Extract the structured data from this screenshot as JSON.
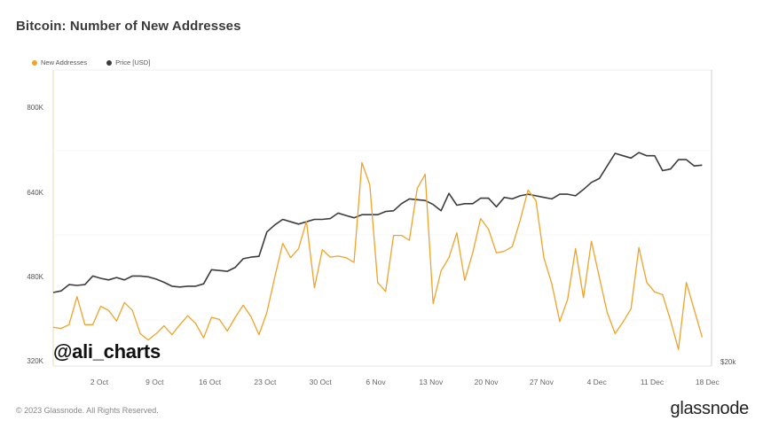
{
  "header": {
    "title": "Bitcoin: Number of New Addresses"
  },
  "legend": [
    {
      "label": "New Addresses",
      "color": "#f0a22a"
    },
    {
      "label": "Price [USD]",
      "color": "#3c3c3c"
    }
  ],
  "axes": {
    "left_ticks": [
      "800K",
      "640K",
      "480K",
      "320K"
    ],
    "right_ticks": [
      "$20k"
    ],
    "x_ticks": [
      "2 Oct",
      "9 Oct",
      "16 Oct",
      "23 Oct",
      "30 Oct",
      "6 Nov",
      "13 Nov",
      "20 Nov",
      "27 Nov",
      "4 Dec",
      "11 Dec",
      "18 Dec"
    ]
  },
  "watermark": "@ali_charts",
  "footer": {
    "copyright": "© 2023 Glassnode. All Rights Reserved.",
    "brand": "glassnode"
  },
  "chart_data": {
    "type": "line",
    "title": "Bitcoin: Number of New Addresses",
    "xlabel": "",
    "ylabel": "New Addresses",
    "ylim": [
      320000,
      870000
    ],
    "y_ticks": [
      320000,
      480000,
      640000,
      800000
    ],
    "x_range": [
      "26 Sep 2023",
      "17 Dec 2023"
    ],
    "x_tick_labels": [
      "2 Oct",
      "9 Oct",
      "16 Oct",
      "23 Oct",
      "30 Oct",
      "6 Nov",
      "13 Nov",
      "20 Nov",
      "27 Nov",
      "4 Dec",
      "11 Dec",
      "18 Dec"
    ],
    "grid": false,
    "legend_position": "top-left",
    "series": [
      {
        "name": "New Addresses",
        "axis": "left",
        "unit": "addresses (K)",
        "color": "#f0a22a",
        "values": [
          385,
          383,
          390,
          443,
          390,
          390,
          425,
          417,
          397,
          432,
          417,
          373,
          361,
          373,
          388,
          371,
          390,
          407,
          392,
          365,
          404,
          400,
          378,
          404,
          427,
          405,
          371,
          413,
          481,
          544,
          517,
          534,
          586,
          460,
          532,
          518,
          520,
          517,
          508,
          697,
          655,
          470,
          453,
          559,
          559,
          550,
          648,
          675,
          430,
          492,
          517,
          564,
          474,
          526,
          591,
          571,
          526,
          529,
          538,
          588,
          645,
          625,
          517,
          467,
          396,
          438,
          534,
          441,
          548,
          480,
          413,
          373,
          395,
          420,
          536,
          470,
          452,
          447,
          398,
          343,
          470,
          418,
          366
        ]
      },
      {
        "name": "Price [USD]",
        "axis": "right",
        "unit": "USD (K)",
        "color": "#3c3c3c",
        "values": [
          26.3,
          26.5,
          27.3,
          27.2,
          27.3,
          28.4,
          28.1,
          27.9,
          28.2,
          27.9,
          28.4,
          28.4,
          28.3,
          28.0,
          27.6,
          27.1,
          27.0,
          27.1,
          27.1,
          27.4,
          29.2,
          29.1,
          29.0,
          29.5,
          30.6,
          30.8,
          30.9,
          34.0,
          34.9,
          35.6,
          35.3,
          35.0,
          35.3,
          35.6,
          35.6,
          35.7,
          36.4,
          36.1,
          35.8,
          36.2,
          36.2,
          36.2,
          36.6,
          36.7,
          37.6,
          38.2,
          38.1,
          38.0,
          37.5,
          36.7,
          38.9,
          37.4,
          37.6,
          37.6,
          38.3,
          38.3,
          37.2,
          38.4,
          38.2,
          38.6,
          38.8,
          38.6,
          38.4,
          38.2,
          38.8,
          38.8,
          38.6,
          39.4,
          40.3,
          40.8,
          42.4,
          44.0,
          43.7,
          43.4,
          44.1,
          43.7,
          43.7,
          41.8,
          42.0,
          43.2,
          43.2,
          42.4,
          42.5
        ]
      }
    ]
  }
}
